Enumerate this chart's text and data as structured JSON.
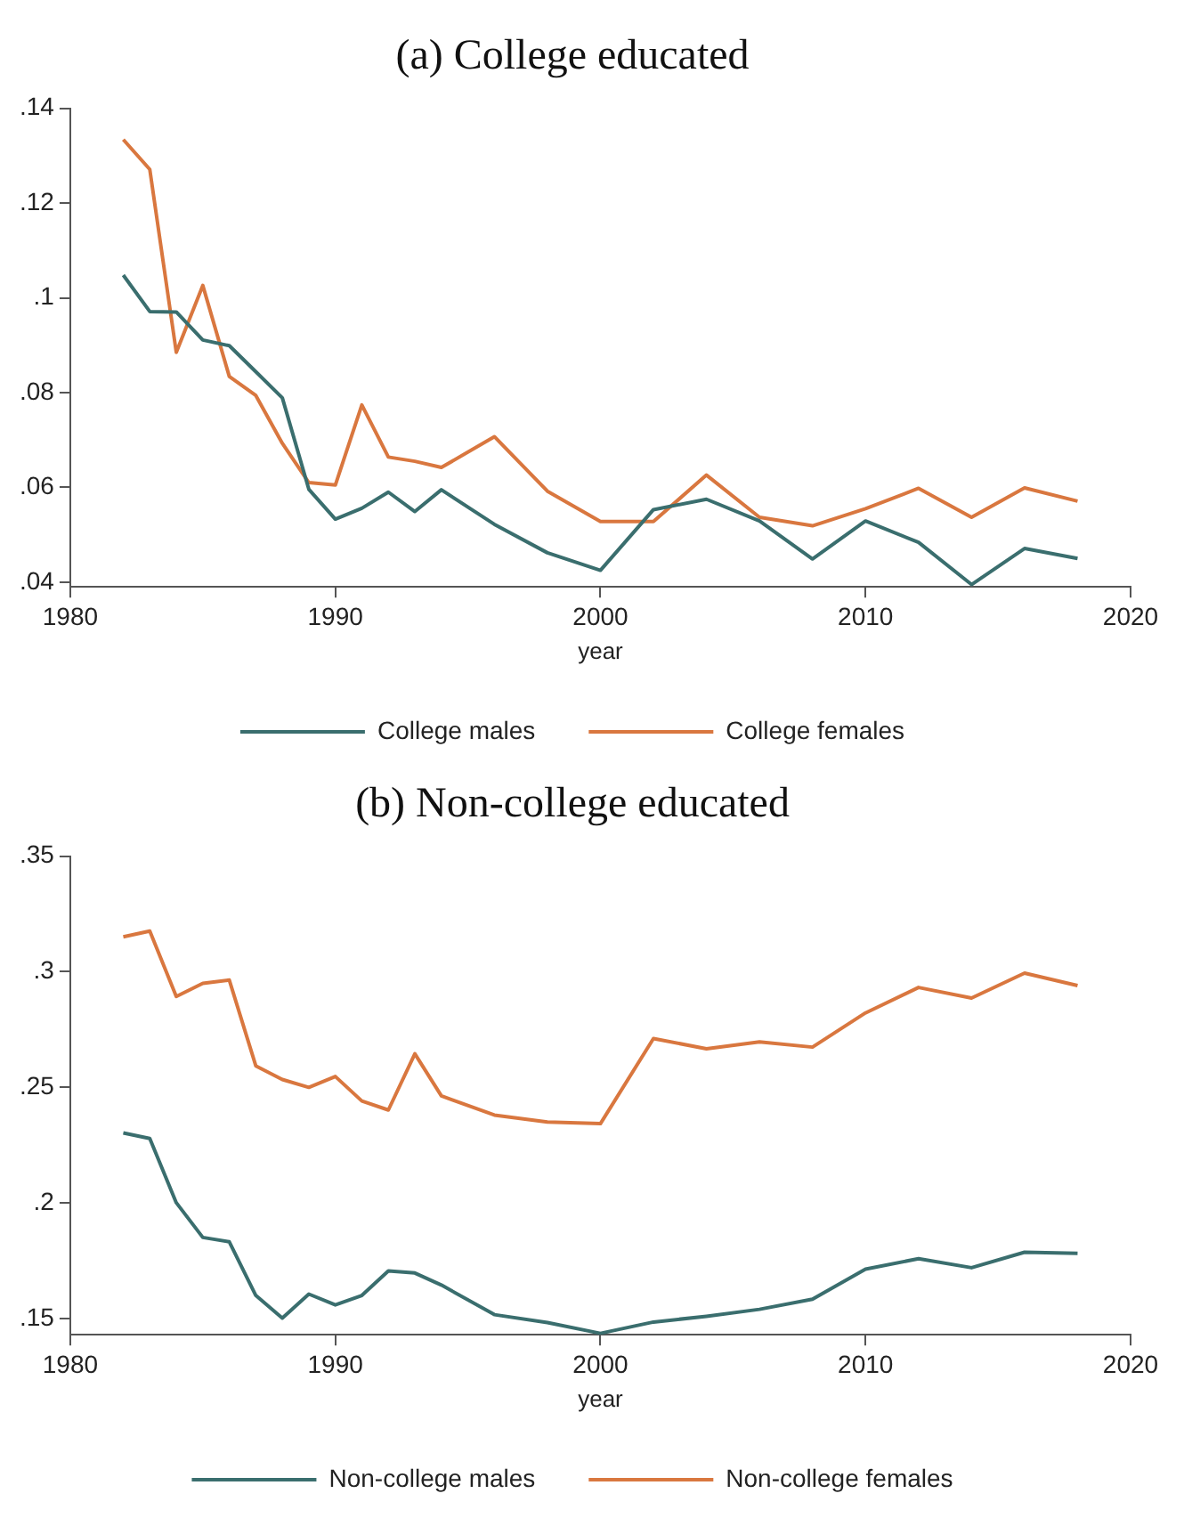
{
  "chart_data": [
    {
      "type": "line",
      "title": "(a) College educated",
      "xlabel": "year",
      "x": [
        1982,
        1983,
        1984,
        1985,
        1986,
        1987,
        1988,
        1989,
        1990,
        1991,
        1992,
        1993,
        1994,
        1996,
        1998,
        2000,
        2002,
        2004,
        2006,
        2008,
        2010,
        2012,
        2014,
        2016,
        2018
      ],
      "xlim": [
        1980,
        2020
      ],
      "xticks": [
        1980,
        1990,
        2000,
        2010,
        2020
      ],
      "ylim": [
        0.039,
        0.14
      ],
      "yticks": [
        {
          "value": 0.04,
          "label": ".04"
        },
        {
          "value": 0.06,
          "label": ".06"
        },
        {
          "value": 0.08,
          "label": ".08"
        },
        {
          "value": 0.1,
          "label": ".1"
        },
        {
          "value": 0.12,
          "label": ".12"
        },
        {
          "value": 0.14,
          "label": ".14"
        }
      ],
      "grid": false,
      "legend": "bottom",
      "marker": "none",
      "line_style": "solid",
      "series": [
        {
          "name": "College males",
          "color": "#3a6e6e",
          "values": [
            0.1048,
            0.0971,
            0.097,
            0.0911,
            0.0899,
            0.0844,
            0.0789,
            0.0596,
            0.0533,
            0.0556,
            0.059,
            0.0549,
            0.0595,
            0.0522,
            0.0462,
            0.0425,
            0.0553,
            0.0575,
            0.0529,
            0.0449,
            0.0529,
            0.0484,
            0.0395,
            0.0471,
            0.045
          ]
        },
        {
          "name": "College females",
          "color": "#d9773f",
          "values": [
            0.1334,
            0.1271,
            0.0885,
            0.1026,
            0.0834,
            0.0794,
            0.0693,
            0.061,
            0.0605,
            0.0774,
            0.0664,
            0.0655,
            0.0642,
            0.0707,
            0.0592,
            0.0528,
            0.0528,
            0.0626,
            0.0537,
            0.0519,
            0.0555,
            0.0598,
            0.0537,
            0.0599,
            0.0571
          ]
        }
      ]
    },
    {
      "type": "line",
      "title": "(b) Non-college educated",
      "xlabel": "year",
      "x": [
        1982,
        1983,
        1984,
        1985,
        1986,
        1987,
        1988,
        1989,
        1990,
        1991,
        1992,
        1993,
        1994,
        1996,
        1998,
        2000,
        2002,
        2004,
        2006,
        2008,
        2010,
        2012,
        2014,
        2016,
        2018
      ],
      "xlim": [
        1980,
        2020
      ],
      "xticks": [
        1980,
        1990,
        2000,
        2010,
        2020
      ],
      "ylim": [
        0.143,
        0.35
      ],
      "yticks": [
        {
          "value": 0.15,
          "label": ".15"
        },
        {
          "value": 0.2,
          "label": ".2"
        },
        {
          "value": 0.25,
          "label": ".25"
        },
        {
          "value": 0.3,
          "label": ".3"
        },
        {
          "value": 0.35,
          "label": ".35"
        }
      ],
      "grid": false,
      "legend": "bottom",
      "marker": "none",
      "line_style": "solid",
      "series": [
        {
          "name": "Non-college males",
          "color": "#3a6e6e",
          "values": [
            0.2303,
            0.2279,
            0.2001,
            0.1851,
            0.1832,
            0.16,
            0.1502,
            0.1606,
            0.1559,
            0.16,
            0.1706,
            0.1697,
            0.1645,
            0.1517,
            0.1483,
            0.1436,
            0.1485,
            0.151,
            0.154,
            0.1584,
            0.1714,
            0.1759,
            0.172,
            0.1787,
            0.1782
          ]
        },
        {
          "name": "Non-college females",
          "color": "#d9773f",
          "values": [
            0.3151,
            0.3176,
            0.2893,
            0.295,
            0.2964,
            0.2593,
            0.2534,
            0.25,
            0.2547,
            0.2441,
            0.2402,
            0.2645,
            0.2463,
            0.238,
            0.235,
            0.2343,
            0.2711,
            0.2667,
            0.2697,
            0.2674,
            0.2822,
            0.2932,
            0.2886,
            0.2994,
            0.294
          ]
        }
      ]
    }
  ]
}
